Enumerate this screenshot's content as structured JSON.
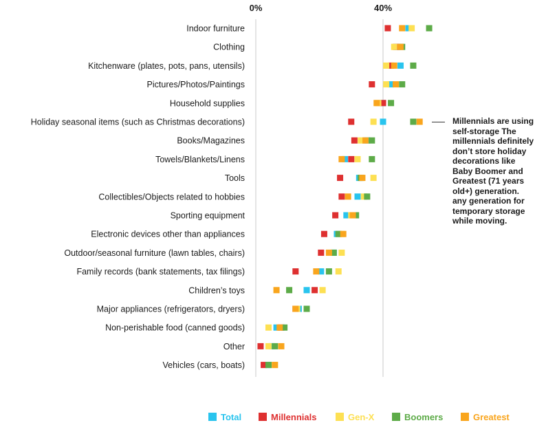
{
  "chart_data": {
    "type": "scatter",
    "title": "",
    "xlabel": "",
    "ylabel": "",
    "xlim": [
      0,
      80
    ],
    "x_ticks": [
      {
        "value": 0,
        "label": "0%"
      },
      {
        "value": 40,
        "label": "40%"
      }
    ],
    "grid": "vertical lines at 0% and 40%",
    "legend_position": "bottom",
    "categories": [
      "Indoor furniture",
      "Clothing",
      "Kitchenware (plates, pots, pans, utensils)",
      "Pictures/Photos/Paintings",
      "Household supplies",
      "Holiday seasonal items (such as Christmas decorations)",
      "Books/Magazines",
      "Towels/Blankets/Linens",
      "Tools",
      "Collectibles/Objects related to hobbies",
      "Sporting equipment",
      "Electronic devices other than appliances",
      "Outdoor/seasonal furniture (lawn tables, chairs)",
      "Family records (bank statements, tax filings)",
      "Children’s toys",
      "Major appliances (refrigerators, dryers)",
      "Non-perishable food (canned goods)",
      "Other",
      "Vehicles (cars, boats)"
    ],
    "series": [
      {
        "name": "Total",
        "color": "#29c4ee",
        "values": [
          48,
          44.5,
          45.5,
          42.5,
          40,
          40,
          35,
          28,
          32.5,
          32,
          28.5,
          25.5,
          24.5,
          20.5,
          16,
          13.5,
          6.5,
          5,
          4
        ]
      },
      {
        "name": "Millennials",
        "color": "#de3030",
        "values": [
          41.5,
          44,
          42.5,
          36.5,
          40,
          30,
          31,
          30,
          26.5,
          27,
          25,
          21.5,
          20.5,
          12.5,
          18.5,
          12.5,
          8,
          1.5,
          2.5
        ]
      },
      {
        "name": "Gen-X",
        "color": "#fde053",
        "values": [
          49,
          43.5,
          41,
          41,
          38.5,
          37,
          33,
          32,
          37,
          34,
          30,
          27,
          27,
          26,
          21,
          13,
          4,
          4,
          6
        ]
      },
      {
        "name": "Boomers",
        "color": "#5dab48",
        "values": [
          54.5,
          46,
          49.5,
          46,
          42.5,
          49.5,
          36.5,
          36.5,
          33,
          35,
          31.5,
          26,
          24.5,
          23,
          10.5,
          16,
          9,
          6,
          4
        ]
      },
      {
        "name": "Greatest",
        "color": "#f9a51d",
        "values": [
          46,
          45.5,
          43.5,
          44,
          38,
          51.5,
          34.5,
          27,
          33.5,
          29,
          30.5,
          27.5,
          23,
          19,
          6.5,
          12.5,
          7.5,
          8,
          6
        ]
      }
    ],
    "annotation": "Millennials are using self-storage The millennials definitely don’t store holiday decorations  like Baby Boomer and Greatest (71 years old+) generation. any generation for temporary storage while moving."
  }
}
